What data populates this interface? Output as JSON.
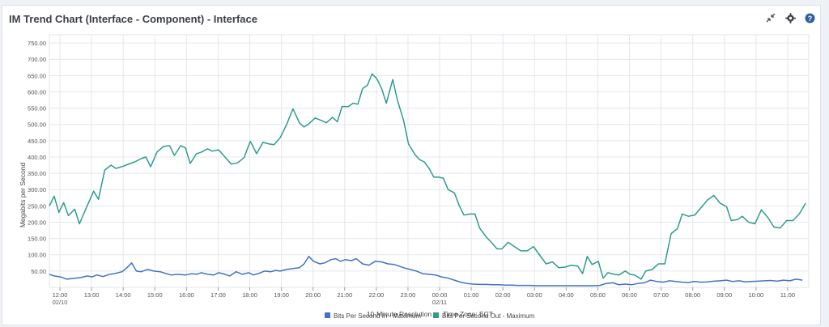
{
  "window": {
    "title": "IM Trend Chart (Interface - Component) - Interface"
  },
  "toolbar": {
    "icons": [
      "collapse-icon",
      "settings-icon",
      "help-icon"
    ],
    "help_glyph": "?"
  },
  "colors": {
    "series_in": "#4472c4",
    "series_out": "#2e9c8e",
    "grid": "#e4e7eb",
    "axis_text": "#555555"
  },
  "chart_data": {
    "type": "line",
    "title": "",
    "ylabel": "Megabits per Second",
    "xlabel": "10-Minute Resolution",
    "timezone_label": "Time Zone: ECT",
    "ylim": [
      0,
      775
    ],
    "yticks": [
      50,
      100,
      150,
      200,
      250,
      300,
      350,
      400,
      450,
      500,
      550,
      600,
      650,
      700,
      750
    ],
    "ytick_labels": [
      "50.00",
      "100.00",
      "150.00",
      "200.00",
      "250.00",
      "300.00",
      "350.00",
      "400.00",
      "450.00",
      "500.00",
      "550.00",
      "600.00",
      "650.00",
      "700.00",
      "750.00"
    ],
    "x_unit": "hours since 11:40 on 02/10",
    "xlim": [
      0,
      24
    ],
    "xticks": [
      {
        "x": 0.333,
        "label": "12:00",
        "sub": "02/10"
      },
      {
        "x": 1.333,
        "label": "13:00"
      },
      {
        "x": 2.333,
        "label": "14:00"
      },
      {
        "x": 3.333,
        "label": "15:00"
      },
      {
        "x": 4.333,
        "label": "16:00"
      },
      {
        "x": 5.333,
        "label": "17:00"
      },
      {
        "x": 6.333,
        "label": "18:00"
      },
      {
        "x": 7.333,
        "label": "19:00"
      },
      {
        "x": 8.333,
        "label": "20:00"
      },
      {
        "x": 9.333,
        "label": "21:00"
      },
      {
        "x": 10.333,
        "label": "22:00"
      },
      {
        "x": 11.333,
        "label": "23:00"
      },
      {
        "x": 12.333,
        "label": "00:00",
        "sub": "02/11"
      },
      {
        "x": 13.333,
        "label": "01:00"
      },
      {
        "x": 14.333,
        "label": "02:00"
      },
      {
        "x": 15.333,
        "label": "03:00"
      },
      {
        "x": 16.333,
        "label": "04:00"
      },
      {
        "x": 17.333,
        "label": "05:00"
      },
      {
        "x": 18.333,
        "label": "06:00"
      },
      {
        "x": 19.333,
        "label": "07:00"
      },
      {
        "x": 20.333,
        "label": "08:00"
      },
      {
        "x": 21.333,
        "label": "09:00"
      },
      {
        "x": 22.333,
        "label": "10:00"
      },
      {
        "x": 23.333,
        "label": "11:00"
      }
    ],
    "series": [
      {
        "name": "Bits Per Second In - Maximum",
        "color": "#4472c4",
        "points": [
          [
            0.0,
            40
          ],
          [
            0.15,
            35
          ],
          [
            0.35,
            32
          ],
          [
            0.55,
            25
          ],
          [
            0.8,
            28
          ],
          [
            1.0,
            30
          ],
          [
            1.2,
            35
          ],
          [
            1.35,
            32
          ],
          [
            1.5,
            38
          ],
          [
            1.7,
            33
          ],
          [
            1.9,
            40
          ],
          [
            2.05,
            42
          ],
          [
            2.3,
            48
          ],
          [
            2.45,
            60
          ],
          [
            2.6,
            75
          ],
          [
            2.75,
            50
          ],
          [
            2.9,
            48
          ],
          [
            3.1,
            55
          ],
          [
            3.3,
            50
          ],
          [
            3.5,
            48
          ],
          [
            3.7,
            42
          ],
          [
            3.85,
            38
          ],
          [
            4.05,
            40
          ],
          [
            4.3,
            38
          ],
          [
            4.5,
            42
          ],
          [
            4.65,
            40
          ],
          [
            4.8,
            45
          ],
          [
            5.0,
            40
          ],
          [
            5.2,
            38
          ],
          [
            5.35,
            45
          ],
          [
            5.55,
            40
          ],
          [
            5.7,
            35
          ],
          [
            5.9,
            48
          ],
          [
            6.1,
            40
          ],
          [
            6.3,
            45
          ],
          [
            6.45,
            38
          ],
          [
            6.6,
            42
          ],
          [
            6.8,
            50
          ],
          [
            7.0,
            48
          ],
          [
            7.15,
            52
          ],
          [
            7.3,
            50
          ],
          [
            7.5,
            55
          ],
          [
            7.7,
            58
          ],
          [
            7.9,
            60
          ],
          [
            8.05,
            72
          ],
          [
            8.2,
            95
          ],
          [
            8.35,
            80
          ],
          [
            8.55,
            72
          ],
          [
            8.7,
            75
          ],
          [
            8.9,
            85
          ],
          [
            9.05,
            88
          ],
          [
            9.2,
            80
          ],
          [
            9.35,
            85
          ],
          [
            9.55,
            82
          ],
          [
            9.7,
            88
          ],
          [
            9.9,
            72
          ],
          [
            10.1,
            68
          ],
          [
            10.3,
            80
          ],
          [
            10.5,
            78
          ],
          [
            10.7,
            72
          ],
          [
            10.9,
            70
          ],
          [
            11.05,
            65
          ],
          [
            11.2,
            60
          ],
          [
            11.4,
            55
          ],
          [
            11.6,
            50
          ],
          [
            11.8,
            42
          ],
          [
            12.0,
            40
          ],
          [
            12.2,
            38
          ],
          [
            12.4,
            32
          ],
          [
            12.6,
            28
          ],
          [
            12.8,
            22
          ],
          [
            13.0,
            16
          ],
          [
            13.2,
            12
          ],
          [
            13.4,
            10
          ],
          [
            13.6,
            9
          ],
          [
            13.8,
            9
          ],
          [
            14.0,
            8
          ],
          [
            14.2,
            8
          ],
          [
            14.4,
            7
          ],
          [
            14.6,
            7
          ],
          [
            14.8,
            6
          ],
          [
            15.0,
            6
          ],
          [
            15.2,
            6
          ],
          [
            15.4,
            5
          ],
          [
            15.6,
            5
          ],
          [
            15.8,
            5
          ],
          [
            16.0,
            5
          ],
          [
            16.2,
            5
          ],
          [
            16.4,
            5
          ],
          [
            16.6,
            5
          ],
          [
            16.8,
            5
          ],
          [
            17.0,
            5
          ],
          [
            17.2,
            5
          ],
          [
            17.4,
            6
          ],
          [
            17.6,
            12
          ],
          [
            17.8,
            14
          ],
          [
            18.0,
            8
          ],
          [
            18.2,
            10
          ],
          [
            18.4,
            8
          ],
          [
            18.6,
            12
          ],
          [
            18.8,
            14
          ],
          [
            19.0,
            22
          ],
          [
            19.2,
            18
          ],
          [
            19.4,
            16
          ],
          [
            19.6,
            20
          ],
          [
            19.8,
            18
          ],
          [
            20.0,
            16
          ],
          [
            20.2,
            15
          ],
          [
            20.4,
            18
          ],
          [
            20.6,
            16
          ],
          [
            20.8,
            17
          ],
          [
            21.0,
            19
          ],
          [
            21.2,
            20
          ],
          [
            21.4,
            22
          ],
          [
            21.6,
            18
          ],
          [
            21.8,
            20
          ],
          [
            22.0,
            17
          ],
          [
            22.2,
            18
          ],
          [
            22.4,
            19
          ],
          [
            22.6,
            20
          ],
          [
            22.8,
            21
          ],
          [
            23.0,
            19
          ],
          [
            23.2,
            22
          ],
          [
            23.4,
            20
          ],
          [
            23.6,
            25
          ],
          [
            23.8,
            22
          ]
        ]
      },
      {
        "name": "Bits Per Second Out - Maximum",
        "color": "#2e9c8e",
        "points": [
          [
            0.0,
            250
          ],
          [
            0.15,
            280
          ],
          [
            0.3,
            230
          ],
          [
            0.45,
            260
          ],
          [
            0.6,
            220
          ],
          [
            0.8,
            240
          ],
          [
            0.95,
            195
          ],
          [
            1.15,
            240
          ],
          [
            1.4,
            295
          ],
          [
            1.55,
            270
          ],
          [
            1.75,
            360
          ],
          [
            1.95,
            375
          ],
          [
            2.1,
            365
          ],
          [
            2.35,
            372
          ],
          [
            2.55,
            380
          ],
          [
            2.7,
            385
          ],
          [
            2.9,
            395
          ],
          [
            3.05,
            400
          ],
          [
            3.2,
            370
          ],
          [
            3.4,
            415
          ],
          [
            3.6,
            432
          ],
          [
            3.8,
            435
          ],
          [
            3.95,
            405
          ],
          [
            4.15,
            435
          ],
          [
            4.3,
            428
          ],
          [
            4.45,
            380
          ],
          [
            4.65,
            410
          ],
          [
            4.8,
            415
          ],
          [
            5.0,
            425
          ],
          [
            5.15,
            418
          ],
          [
            5.35,
            422
          ],
          [
            5.55,
            400
          ],
          [
            5.75,
            378
          ],
          [
            5.95,
            382
          ],
          [
            6.15,
            398
          ],
          [
            6.35,
            448
          ],
          [
            6.55,
            410
          ],
          [
            6.75,
            445
          ],
          [
            6.95,
            440
          ],
          [
            7.1,
            438
          ],
          [
            7.3,
            460
          ],
          [
            7.5,
            500
          ],
          [
            7.7,
            548
          ],
          [
            7.9,
            505
          ],
          [
            8.05,
            492
          ],
          [
            8.2,
            502
          ],
          [
            8.4,
            520
          ],
          [
            8.6,
            512
          ],
          [
            8.75,
            505
          ],
          [
            8.95,
            522
          ],
          [
            9.1,
            508
          ],
          [
            9.25,
            555
          ],
          [
            9.45,
            555
          ],
          [
            9.6,
            565
          ],
          [
            9.75,
            562
          ],
          [
            9.9,
            610
          ],
          [
            10.05,
            620
          ],
          [
            10.2,
            655
          ],
          [
            10.35,
            640
          ],
          [
            10.5,
            610
          ],
          [
            10.65,
            565
          ],
          [
            10.85,
            638
          ],
          [
            11.0,
            575
          ],
          [
            11.2,
            510
          ],
          [
            11.35,
            440
          ],
          [
            11.55,
            408
          ],
          [
            11.7,
            392
          ],
          [
            11.85,
            385
          ],
          [
            12.0,
            365
          ],
          [
            12.15,
            338
          ],
          [
            12.3,
            338
          ],
          [
            12.45,
            335
          ],
          [
            12.6,
            300
          ],
          [
            12.8,
            290
          ],
          [
            12.95,
            252
          ],
          [
            13.1,
            222
          ],
          [
            13.3,
            225
          ],
          [
            13.45,
            225
          ],
          [
            13.6,
            182
          ],
          [
            13.8,
            155
          ],
          [
            13.95,
            140
          ],
          [
            14.15,
            118
          ],
          [
            14.3,
            118
          ],
          [
            14.5,
            138
          ],
          [
            14.7,
            125
          ],
          [
            14.9,
            112
          ],
          [
            15.1,
            112
          ],
          [
            15.3,
            125
          ],
          [
            15.5,
            98
          ],
          [
            15.7,
            72
          ],
          [
            15.9,
            78
          ],
          [
            16.1,
            60
          ],
          [
            16.3,
            62
          ],
          [
            16.5,
            68
          ],
          [
            16.7,
            65
          ],
          [
            16.85,
            42
          ],
          [
            17.0,
            95
          ],
          [
            17.15,
            70
          ],
          [
            17.35,
            80
          ],
          [
            17.5,
            28
          ],
          [
            17.65,
            45
          ],
          [
            17.85,
            40
          ],
          [
            18.0,
            38
          ],
          [
            18.2,
            50
          ],
          [
            18.35,
            40
          ],
          [
            18.5,
            38
          ],
          [
            18.7,
            25
          ],
          [
            18.85,
            50
          ],
          [
            19.05,
            55
          ],
          [
            19.25,
            72
          ],
          [
            19.45,
            72
          ],
          [
            19.65,
            165
          ],
          [
            19.85,
            180
          ],
          [
            20.0,
            225
          ],
          [
            20.2,
            218
          ],
          [
            20.4,
            222
          ],
          [
            20.6,
            245
          ],
          [
            20.8,
            268
          ],
          [
            21.0,
            282
          ],
          [
            21.2,
            258
          ],
          [
            21.4,
            248
          ],
          [
            21.55,
            205
          ],
          [
            21.75,
            208
          ],
          [
            21.9,
            218
          ],
          [
            22.1,
            200
          ],
          [
            22.3,
            195
          ],
          [
            22.5,
            238
          ],
          [
            22.7,
            215
          ],
          [
            22.9,
            185
          ],
          [
            23.1,
            182
          ],
          [
            23.3,
            205
          ],
          [
            23.5,
            205
          ],
          [
            23.7,
            225
          ],
          [
            23.9,
            258
          ]
        ]
      }
    ]
  }
}
